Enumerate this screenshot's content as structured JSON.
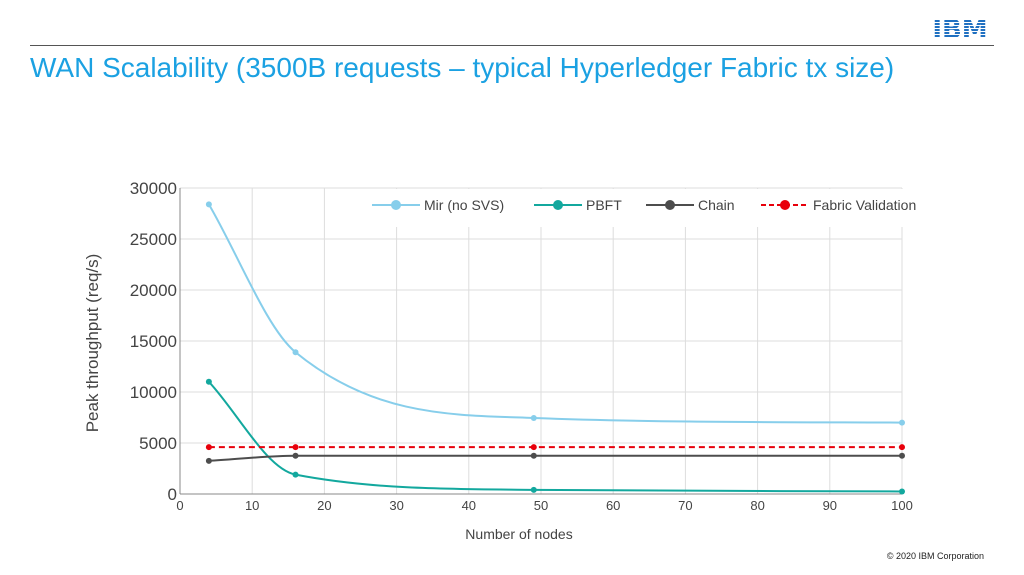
{
  "slide": {
    "title": "WAN Scalability (3500B requests – typical Hyperledger Fabric tx size)",
    "logo_text": "IBM",
    "footer": "© 2020 IBM Corporation"
  },
  "colors": {
    "title": "#1ba1e2",
    "logo": "#1f70c1",
    "grid": "#dddddd",
    "axis_text": "#444444"
  },
  "chart_data": {
    "type": "line",
    "title": "",
    "xlabel": "Number of nodes",
    "ylabel": "Peak throughput (req/s)",
    "xlim": [
      0,
      100
    ],
    "ylim": [
      0,
      30000
    ],
    "xticks": [
      0,
      10,
      20,
      30,
      40,
      50,
      60,
      70,
      80,
      90,
      100
    ],
    "yticks": [
      0,
      5000,
      10000,
      15000,
      20000,
      25000,
      30000
    ],
    "grid": true,
    "legend_position": "top",
    "series": [
      {
        "name": "Mir (no SVS)",
        "color": "#87ceeb",
        "dashed": false,
        "x": [
          4,
          16,
          49,
          100
        ],
        "y": [
          28400,
          13900,
          7450,
          7000
        ]
      },
      {
        "name": "PBFT",
        "color": "#13a89e",
        "dashed": false,
        "x": [
          4,
          16,
          49,
          100
        ],
        "y": [
          11000,
          1900,
          400,
          250
        ]
      },
      {
        "name": "Chain",
        "color": "#4d4d4d",
        "dashed": false,
        "x": [
          4,
          16,
          49,
          100
        ],
        "y": [
          3250,
          3750,
          3750,
          3750
        ]
      },
      {
        "name": "Fabric Validation",
        "color": "#e8000b",
        "dashed": true,
        "x": [
          4,
          16,
          49,
          100
        ],
        "y": [
          4600,
          4600,
          4600,
          4600
        ]
      }
    ]
  }
}
